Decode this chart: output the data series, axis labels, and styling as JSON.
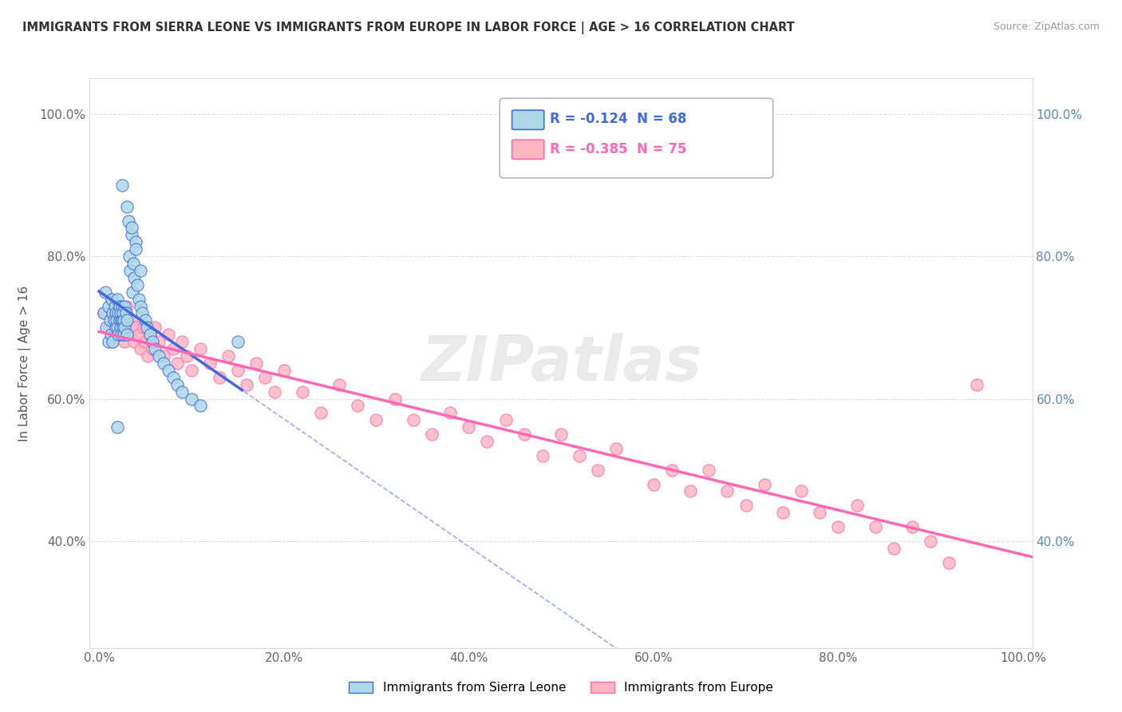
{
  "title": "IMMIGRANTS FROM SIERRA LEONE VS IMMIGRANTS FROM EUROPE IN LABOR FORCE | AGE > 16 CORRELATION CHART",
  "source": "Source: ZipAtlas.com",
  "ylabel": "In Labor Force | Age > 16",
  "watermark": "ZIPatlas",
  "bottom_legend": [
    "Immigrants from Sierra Leone",
    "Immigrants from Europe"
  ],
  "xlim": [
    -0.01,
    1.01
  ],
  "ylim": [
    0.25,
    1.05
  ],
  "yticks_left": [
    0.4,
    0.6,
    0.8,
    1.0
  ],
  "ytick_labels_left": [
    "40.0%",
    "60.0%",
    "80.0%",
    "100.0%"
  ],
  "yticks_right": [
    0.4,
    0.6,
    0.8,
    1.0
  ],
  "ytick_labels_right": [
    "40.0%",
    "60.0%",
    "80.0%",
    "100.0%"
  ],
  "xticks": [
    0.0,
    0.2,
    0.4,
    0.6,
    0.8,
    1.0
  ],
  "xtick_labels": [
    "0.0%",
    "20.0%",
    "40.0%",
    "60.0%",
    "80.0%",
    "100.0%"
  ],
  "blue_color": "#add8e6",
  "pink_color": "#ffb6c1",
  "blue_line_color": "#4169E1",
  "pink_line_color": "#FF69B4",
  "blue_R": -0.124,
  "blue_N": 68,
  "pink_R": -0.385,
  "pink_N": 75,
  "background_color": "#ffffff",
  "grid_color": "#dddddd",
  "blue_scatter_x": [
    0.005,
    0.007,
    0.008,
    0.01,
    0.01,
    0.012,
    0.013,
    0.014,
    0.015,
    0.015,
    0.016,
    0.017,
    0.018,
    0.018,
    0.019,
    0.02,
    0.02,
    0.021,
    0.021,
    0.022,
    0.022,
    0.023,
    0.023,
    0.024,
    0.024,
    0.025,
    0.025,
    0.026,
    0.026,
    0.027,
    0.027,
    0.028,
    0.028,
    0.029,
    0.03,
    0.03,
    0.032,
    0.033,
    0.034,
    0.035,
    0.036,
    0.037,
    0.038,
    0.04,
    0.041,
    0.043,
    0.045,
    0.047,
    0.05,
    0.052,
    0.055,
    0.058,
    0.06,
    0.065,
    0.07,
    0.075,
    0.08,
    0.085,
    0.09,
    0.1,
    0.11,
    0.025,
    0.03,
    0.035,
    0.04,
    0.045,
    0.15,
    0.02
  ],
  "blue_scatter_y": [
    0.72,
    0.75,
    0.7,
    0.68,
    0.73,
    0.71,
    0.69,
    0.74,
    0.72,
    0.68,
    0.71,
    0.73,
    0.7,
    0.72,
    0.71,
    0.7,
    0.74,
    0.72,
    0.69,
    0.71,
    0.73,
    0.7,
    0.72,
    0.71,
    0.69,
    0.73,
    0.71,
    0.7,
    0.72,
    0.71,
    0.69,
    0.73,
    0.7,
    0.72,
    0.71,
    0.69,
    0.85,
    0.8,
    0.78,
    0.83,
    0.75,
    0.79,
    0.77,
    0.82,
    0.76,
    0.74,
    0.73,
    0.72,
    0.71,
    0.7,
    0.69,
    0.68,
    0.67,
    0.66,
    0.65,
    0.64,
    0.63,
    0.62,
    0.61,
    0.6,
    0.59,
    0.9,
    0.87,
    0.84,
    0.81,
    0.78,
    0.68,
    0.56
  ],
  "pink_scatter_x": [
    0.005,
    0.01,
    0.015,
    0.018,
    0.02,
    0.022,
    0.025,
    0.028,
    0.03,
    0.033,
    0.035,
    0.038,
    0.04,
    0.043,
    0.045,
    0.048,
    0.05,
    0.053,
    0.055,
    0.058,
    0.06,
    0.065,
    0.07,
    0.075,
    0.08,
    0.085,
    0.09,
    0.095,
    0.1,
    0.11,
    0.12,
    0.13,
    0.14,
    0.15,
    0.16,
    0.17,
    0.18,
    0.19,
    0.2,
    0.22,
    0.24,
    0.26,
    0.28,
    0.3,
    0.32,
    0.34,
    0.36,
    0.38,
    0.4,
    0.42,
    0.44,
    0.46,
    0.48,
    0.5,
    0.52,
    0.54,
    0.56,
    0.6,
    0.62,
    0.64,
    0.66,
    0.68,
    0.7,
    0.72,
    0.74,
    0.76,
    0.78,
    0.8,
    0.82,
    0.84,
    0.86,
    0.88,
    0.9,
    0.92,
    0.95
  ],
  "pink_scatter_y": [
    0.72,
    0.7,
    0.68,
    0.71,
    0.69,
    0.72,
    0.7,
    0.68,
    0.73,
    0.69,
    0.71,
    0.68,
    0.7,
    0.69,
    0.67,
    0.7,
    0.68,
    0.66,
    0.69,
    0.67,
    0.7,
    0.68,
    0.66,
    0.69,
    0.67,
    0.65,
    0.68,
    0.66,
    0.64,
    0.67,
    0.65,
    0.63,
    0.66,
    0.64,
    0.62,
    0.65,
    0.63,
    0.61,
    0.64,
    0.61,
    0.58,
    0.62,
    0.59,
    0.57,
    0.6,
    0.57,
    0.55,
    0.58,
    0.56,
    0.54,
    0.57,
    0.55,
    0.52,
    0.55,
    0.52,
    0.5,
    0.53,
    0.48,
    0.5,
    0.47,
    0.5,
    0.47,
    0.45,
    0.48,
    0.44,
    0.47,
    0.44,
    0.42,
    0.45,
    0.42,
    0.39,
    0.42,
    0.4,
    0.37,
    0.62
  ]
}
